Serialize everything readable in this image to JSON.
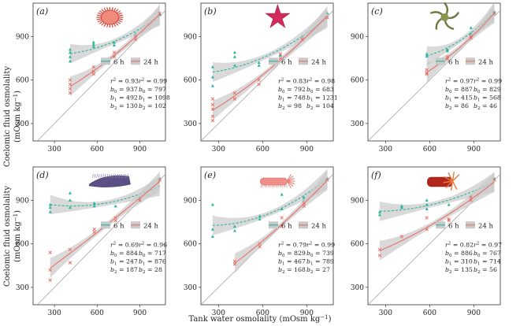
{
  "figure": {
    "ylabel_line1": "Coelomic fluid osmolality",
    "ylabel_line2": "(mOsm kg",
    "ylabel_sup": "−1",
    "ylabel_close": ")",
    "xlabel": "Tank water osmolality (mOsm kg",
    "xlabel_sup": "−1",
    "xlabel_close": ")",
    "legend_6h": "6 h",
    "legend_24h": "24 h",
    "colors": {
      "series_6h": "#2bb59f",
      "series_24h": "#e8706a",
      "ci_band": "#c9c9c9",
      "identity": "#9a9a9a",
      "axis": "#333333"
    }
  },
  "chart_data": [
    {
      "panel": "(a)",
      "type": "scatter",
      "organism_icon": "sea-urchin-icon",
      "xlim": [
        150,
        1080
      ],
      "ylim": [
        180,
        1130
      ],
      "xticks": [
        "300",
        "600",
        "900"
      ],
      "yticks": [
        "300",
        "600",
        "900"
      ],
      "series": [
        {
          "name": "6 h",
          "color": "#2bb59f",
          "fit": {
            "b0": 937,
            "b1": 492,
            "b2": 130
          },
          "points": [
            [
              410,
              810
            ],
            [
              410,
              790
            ],
            [
              410,
              760
            ],
            [
              410,
              730
            ],
            [
              575,
              860
            ],
            [
              575,
              845
            ],
            [
              575,
              830
            ],
            [
              720,
              860
            ],
            [
              720,
              840
            ],
            [
              870,
              920
            ],
            [
              870,
              905
            ],
            [
              1040,
              1060
            ],
            [
              1040,
              1050
            ]
          ]
        },
        {
          "name": "24 h",
          "color": "#e8706a",
          "fit": {
            "b0": 797,
            "b1": 1098,
            "b2": 102
          },
          "points": [
            [
              410,
              600
            ],
            [
              410,
              570
            ],
            [
              410,
              540
            ],
            [
              410,
              510
            ],
            [
              575,
              690
            ],
            [
              575,
              660
            ],
            [
              575,
              640
            ],
            [
              720,
              790
            ],
            [
              720,
              760
            ],
            [
              870,
              900
            ],
            [
              870,
              880
            ],
            [
              1040,
              1060
            ]
          ]
        }
      ],
      "stats": [
        {
          "r2": "0.93",
          "b0": "937",
          "b1": "492",
          "b2": "130"
        },
        {
          "r2": "0.99",
          "b0": "797",
          "b1": "1098",
          "b2": "102"
        }
      ]
    },
    {
      "panel": "(b)",
      "type": "scatter",
      "organism_icon": "sea-star-icon",
      "xlim": [
        180,
        1080
      ],
      "ylim": [
        180,
        1130
      ],
      "xticks": [
        "300",
        "600",
        "900"
      ],
      "yticks": [
        "300",
        "600",
        "900"
      ],
      "series": [
        {
          "name": "6 h",
          "color": "#2bb59f",
          "fit": {
            "b0": 792,
            "b1": 748,
            "b2": 98
          },
          "points": [
            [
              260,
              690
            ],
            [
              260,
              620
            ],
            [
              260,
              560
            ],
            [
              410,
              790
            ],
            [
              410,
              760
            ],
            [
              410,
              700
            ],
            [
              575,
              720
            ],
            [
              575,
              700
            ],
            [
              720,
              770
            ],
            [
              870,
              900
            ],
            [
              870,
              880
            ],
            [
              1040,
              1060
            ]
          ]
        },
        {
          "name": "24 h",
          "color": "#e8706a",
          "fit": {
            "b0": 683,
            "b1": 1231,
            "b2": 104
          },
          "points": [
            [
              260,
              470
            ],
            [
              260,
              430
            ],
            [
              260,
              400
            ],
            [
              260,
              350
            ],
            [
              260,
              320
            ],
            [
              410,
              510
            ],
            [
              410,
              470
            ],
            [
              575,
              600
            ],
            [
              575,
              570
            ],
            [
              720,
              780
            ],
            [
              720,
              750
            ],
            [
              870,
              880
            ],
            [
              1040,
              1030
            ]
          ]
        }
      ],
      "stats": [
        {
          "r2": "0.83",
          "b0": "792",
          "b1": "748",
          "b2": "98"
        },
        {
          "r2": "0.98",
          "b0": "683",
          "b1": "1231",
          "b2": "104"
        }
      ]
    },
    {
      "panel": "(c)",
      "type": "scatter",
      "organism_icon": "brittle-star-icon",
      "xlim": [
        180,
        1080
      ],
      "ylim": [
        180,
        1130
      ],
      "xticks": [
        "300",
        "600",
        "900"
      ],
      "yticks": [
        "300",
        "600",
        "900"
      ],
      "series": [
        {
          "name": "6 h",
          "color": "#2bb59f",
          "fit": {
            "b0": 887,
            "b1": 415,
            "b2": 86
          },
          "points": [
            [
              580,
              780
            ],
            [
              580,
              765
            ],
            [
              720,
              810
            ],
            [
              720,
              800
            ],
            [
              880,
              960
            ],
            [
              880,
              920
            ],
            [
              1040,
              1070
            ],
            [
              1040,
              1060
            ]
          ]
        },
        {
          "name": "24 h",
          "color": "#e8706a",
          "fit": {
            "b0": 829,
            "b1": 568,
            "b2": 46
          },
          "points": [
            [
              580,
              670
            ],
            [
              580,
              650
            ],
            [
              580,
              640
            ],
            [
              720,
              760
            ],
            [
              720,
              745
            ],
            [
              880,
              900
            ],
            [
              880,
              890
            ],
            [
              1040,
              1060
            ]
          ]
        }
      ],
      "stats": [
        {
          "r2": "0.97",
          "b0": "887",
          "b1": "415",
          "b2": "86"
        },
        {
          "r2": "0.99",
          "b0": "829",
          "b1": "568",
          "b2": "46"
        }
      ]
    },
    {
      "panel": "(d)",
      "type": "scatter",
      "organism_icon": "sea-cucumber-icon",
      "xlim": [
        150,
        1080
      ],
      "ylim": [
        180,
        1130
      ],
      "xticks": [
        "300",
        "600",
        "900"
      ],
      "yticks": [
        "300",
        "600",
        "900"
      ],
      "series": [
        {
          "name": "6 h",
          "color": "#2bb59f",
          "fit": {
            "b0": 884,
            "b1": 247,
            "b2": 187
          },
          "points": [
            [
              270,
              870
            ],
            [
              270,
              850
            ],
            [
              270,
              820
            ],
            [
              410,
              950
            ],
            [
              410,
              900
            ],
            [
              410,
              850
            ],
            [
              580,
              880
            ],
            [
              580,
              860
            ],
            [
              730,
              860
            ],
            [
              900,
              920
            ],
            [
              900,
              900
            ],
            [
              1040,
              1050
            ]
          ]
        },
        {
          "name": "24 h",
          "color": "#e8706a",
          "fit": {
            "b0": 717,
            "b1": 876,
            "b2": 28
          },
          "points": [
            [
              270,
              540
            ],
            [
              270,
              420
            ],
            [
              270,
              350
            ],
            [
              410,
              560
            ],
            [
              410,
              470
            ],
            [
              580,
              700
            ],
            [
              580,
              680
            ],
            [
              730,
              780
            ],
            [
              730,
              760
            ],
            [
              900,
              900
            ],
            [
              1040,
              1040
            ]
          ]
        }
      ],
      "stats": [
        {
          "r2": "0.69",
          "b0": "884",
          "b1": "247",
          "b2": "187"
        },
        {
          "r2": "0.96",
          "b0": "717",
          "b1": "876",
          "b2": "28"
        }
      ]
    },
    {
      "panel": "(e)",
      "type": "scatter",
      "organism_icon": "sea-cucumber-pink-icon",
      "xlim": [
        180,
        1080
      ],
      "ylim": [
        180,
        1130
      ],
      "xticks": [
        "300",
        "600",
        "900"
      ],
      "yticks": [
        "300",
        "600",
        "900"
      ],
      "series": [
        {
          "name": "6 h",
          "color": "#2bb59f",
          "fit": {
            "b0": 829,
            "b1": 467,
            "b2": 168
          },
          "points": [
            [
              260,
              870
            ],
            [
              260,
              700
            ],
            [
              260,
              650
            ],
            [
              410,
              720
            ],
            [
              410,
              690
            ],
            [
              580,
              790
            ],
            [
              580,
              770
            ],
            [
              730,
              940
            ],
            [
              730,
              840
            ],
            [
              880,
              920
            ],
            [
              880,
              900
            ],
            [
              1040,
              1050
            ]
          ]
        },
        {
          "name": "24 h",
          "color": "#e8706a",
          "fit": {
            "b0": 739,
            "b1": 789,
            "b2": 27
          },
          "points": [
            [
              410,
              480
            ],
            [
              410,
              460
            ],
            [
              580,
              600
            ],
            [
              580,
              580
            ],
            [
              730,
              780
            ],
            [
              730,
              720
            ],
            [
              880,
              880
            ],
            [
              880,
              860
            ],
            [
              1040,
              1040
            ]
          ]
        }
      ],
      "stats": [
        {
          "r2": "0.79",
          "b0": "829",
          "b1": "467",
          "b2": "168"
        },
        {
          "r2": "0.99",
          "b0": "739",
          "b1": "789",
          "b2": "27"
        }
      ]
    },
    {
      "panel": "(f)",
      "type": "scatter",
      "organism_icon": "sea-cucumber-red-icon",
      "xlim": [
        180,
        1080
      ],
      "ylim": [
        180,
        1130
      ],
      "xticks": [
        "300",
        "600",
        "900"
      ],
      "yticks": [
        "300",
        "600",
        "900"
      ],
      "series": [
        {
          "name": "6 h",
          "color": "#2bb59f",
          "fit": {
            "b0": 886,
            "b1": 310,
            "b2": 135
          },
          "points": [
            [
              260,
              820
            ],
            [
              260,
              800
            ],
            [
              410,
              860
            ],
            [
              410,
              850
            ],
            [
              580,
              900
            ],
            [
              580,
              870
            ],
            [
              580,
              840
            ],
            [
              730,
              870
            ],
            [
              880,
              930
            ],
            [
              1040,
              1050
            ]
          ]
        },
        {
          "name": "24 h",
          "color": "#e8706a",
          "fit": {
            "b0": 767,
            "b1": 714,
            "b2": 56
          },
          "points": [
            [
              260,
              560
            ],
            [
              260,
              520
            ],
            [
              410,
              650
            ],
            [
              580,
              780
            ],
            [
              580,
              700
            ],
            [
              730,
              770
            ],
            [
              730,
              760
            ],
            [
              880,
              920
            ],
            [
              880,
              900
            ],
            [
              1040,
              1040
            ]
          ]
        }
      ],
      "stats": [
        {
          "r2": "0.82",
          "b0": "886",
          "b1": "310",
          "b2": "135"
        },
        {
          "r2": "0.97",
          "b0": "767",
          "b1": "714",
          "b2": "56"
        }
      ]
    }
  ]
}
